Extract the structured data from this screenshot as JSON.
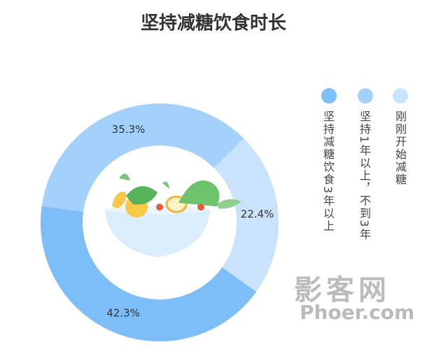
{
  "chart_data": {
    "type": "pie",
    "title": "坚持减糖饮食时长",
    "categories": [
      "刚刚开始减糖",
      "坚持减糖饮食3年以上",
      "坚持1年以上，不到3年"
    ],
    "values": [
      22.4,
      42.3,
      35.3
    ],
    "value_labels": [
      "22.4%",
      "42.3%",
      "35.3%"
    ],
    "colors": [
      "#c9e3fd",
      "#7dbdf8",
      "#a3d1fc"
    ],
    "legend_order": [
      1,
      2,
      0
    ],
    "legend": "right"
  },
  "watermark": {
    "title": "影客网",
    "site": "Phoer.com"
  }
}
